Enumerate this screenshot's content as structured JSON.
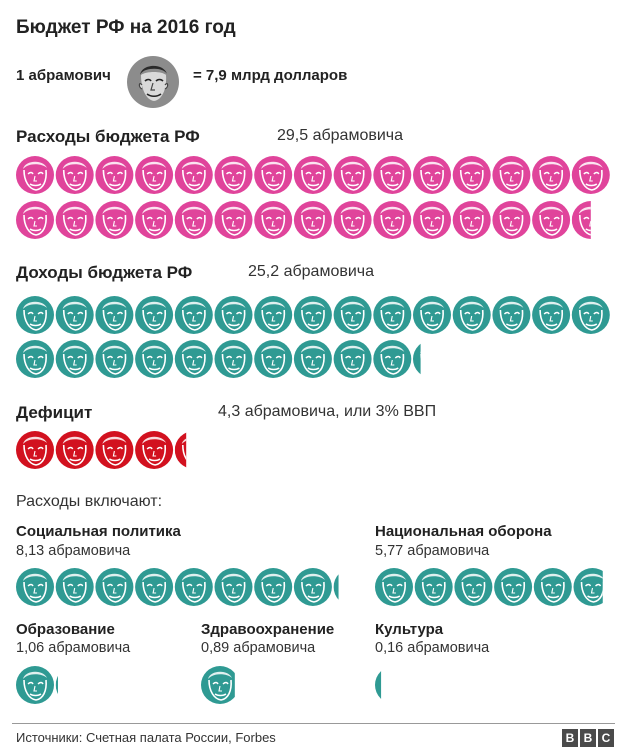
{
  "title": "Бюджет РФ на 2016 год",
  "legend": {
    "left": "1 абрамович",
    "right": "= 7,9 млрд долларов",
    "icon": "face-portrait-icon"
  },
  "colors": {
    "pink": "#e0449b",
    "teal": "#2f9a93",
    "red": "#d2111f",
    "gray": "#8c8c8c"
  },
  "sections": {
    "expenses": {
      "label": "Расходы бюджета РФ",
      "value_text": "29,5 абрамовича"
    },
    "revenue": {
      "label": "Доходы бюджета РФ",
      "value_text": "25,2 абрамовича"
    },
    "deficit": {
      "label": "Дефицит",
      "value_text": "4,3 абрамовича, или 3% ВВП"
    }
  },
  "includes_heading": "Расходы включают:",
  "categories": {
    "social": {
      "name": "Социальная политика",
      "value_text": "8,13 абрамовича"
    },
    "defense": {
      "name": "Национальная оборона",
      "value_text": "5,77 абрамовича"
    },
    "education": {
      "name": "Образование",
      "value_text": "1,06 абрамовича"
    },
    "health": {
      "name": "Здравоохранение",
      "value_text": "0,89 абрамовича"
    },
    "culture": {
      "name": "Культура",
      "value_text": "0,16 абрамовича"
    }
  },
  "chart_data": {
    "type": "bar",
    "unit": "абрамович",
    "categories": [
      "Расходы бюджета РФ",
      "Доходы бюджета РФ",
      "Дефицит",
      "Социальная политика",
      "Национальная оборона",
      "Образование",
      "Здравоохранение",
      "Культура"
    ],
    "values": [
      29.5,
      25.2,
      4.3,
      8.13,
      5.77,
      1.06,
      0.89,
      0.16
    ]
  },
  "footer": {
    "source": "Источники: Счетная палата России, Forbes",
    "logo_letters": [
      "B",
      "B",
      "C"
    ]
  }
}
